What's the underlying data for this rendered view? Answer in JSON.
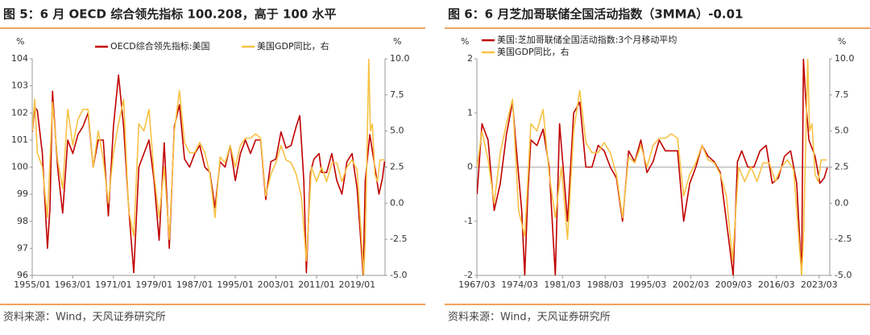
{
  "chart_data": [
    {
      "type": "line",
      "title": "图 5：6 月 OECD 综合领先指标 100.208，高于 100 水平",
      "source": "资料来源：Wind，天风证券研究所",
      "y_unit": "%",
      "y2_unit": "%",
      "legend": "top",
      "xlim": [
        1955,
        2024.5
      ],
      "xticks": [
        {
          "value": 1955,
          "label": "1955/01"
        },
        {
          "value": 1963,
          "label": "1963/01"
        },
        {
          "value": 1971,
          "label": "1971/01"
        },
        {
          "value": 1979,
          "label": "1979/01"
        },
        {
          "value": 1987,
          "label": "1987/01"
        },
        {
          "value": 1995,
          "label": "1995/01"
        },
        {
          "value": 2003,
          "label": "2003/01"
        },
        {
          "value": 2011,
          "label": "2011/01"
        },
        {
          "value": 2019,
          "label": "2019/01"
        }
      ],
      "ylim": [
        96,
        104
      ],
      "yticks": [
        96,
        97,
        98,
        99,
        100,
        101,
        102,
        103,
        104
      ],
      "y2lim": [
        -5,
        10
      ],
      "y2ticks": [
        {
          "value": -5,
          "label": "-5.0"
        },
        -2.5,
        {
          "value": 0,
          "label": "0.0"
        },
        2.5,
        {
          "value": 5,
          "label": "5.0"
        },
        7.5,
        {
          "value": 10,
          "label": "10.0"
        }
      ],
      "series": [
        {
          "name": "OECD综合领先指标:美国",
          "color": "#c00000",
          "axis": "y",
          "x": [
            1955,
            1955.5,
            1956,
            1957,
            1958,
            1958.5,
            1959,
            1960,
            1961,
            1962,
            1963,
            1964,
            1965,
            1966,
            1967,
            1968,
            1969,
            1970,
            1971,
            1972,
            1973,
            1974,
            1975,
            1976,
            1977,
            1978,
            1979,
            1980,
            1981,
            1982,
            1983,
            1984,
            1985,
            1986,
            1987,
            1988,
            1989,
            1990,
            1991,
            1992,
            1993,
            1994,
            1995,
            1996,
            1997,
            1998,
            1999,
            2000,
            2001,
            2002,
            2003,
            2004,
            2005,
            2006,
            2007,
            2007.7,
            2008.5,
            2009,
            2009.8,
            2010.5,
            2011.5,
            2012,
            2013,
            2014,
            2015,
            2016,
            2017,
            2018,
            2019,
            2020.2,
            2020.6,
            2021.5,
            2022.5,
            2023.3,
            2024,
            2024.4
          ],
          "values": [
            101.3,
            102.2,
            102.1,
            100.5,
            97.0,
            98.5,
            102.8,
            100.0,
            98.3,
            101.0,
            100.5,
            101.2,
            101.5,
            102.0,
            100.0,
            101.0,
            101.0,
            98.2,
            101.5,
            103.4,
            101.5,
            98.5,
            96.1,
            100.0,
            100.5,
            101.0,
            99.5,
            97.3,
            100.9,
            97.0,
            101.5,
            102.3,
            100.3,
            100.0,
            100.5,
            100.8,
            100.0,
            99.8,
            98.5,
            100.2,
            100.0,
            100.8,
            99.5,
            100.5,
            101.0,
            100.5,
            101.0,
            101.0,
            98.8,
            100.2,
            100.3,
            101.3,
            100.7,
            100.8,
            101.5,
            101.9,
            99.5,
            96.1,
            99.8,
            100.3,
            100.5,
            99.8,
            99.8,
            100.5,
            99.5,
            99.0,
            100.2,
            100.5,
            99.2,
            96.0,
            99.5,
            101.2,
            100.0,
            99.0,
            99.6,
            100.208
          ]
        },
        {
          "name": "美国GDP同比，右",
          "color": "#f7c244",
          "axis": "y2",
          "x": [
            1955,
            1955.5,
            1956,
            1957,
            1958,
            1959,
            1960,
            1961,
            1962,
            1963,
            1964,
            1965,
            1966,
            1967,
            1968,
            1969,
            1970,
            1971,
            1972,
            1973,
            1974,
            1975,
            1976,
            1977,
            1978,
            1979,
            1980,
            1981,
            1982,
            1983,
            1984,
            1985,
            1986,
            1987,
            1988,
            1989,
            1990,
            1991,
            1992,
            1993,
            1994,
            1995,
            1996,
            1997,
            1998,
            1999,
            2000,
            2001,
            2002,
            2003,
            2004,
            2005,
            2006,
            2007,
            2008,
            2009,
            2010,
            2011,
            2012,
            2013,
            2014,
            2015,
            2016,
            2017,
            2018,
            2019,
            2020.3,
            2020.6,
            2021.3,
            2021.6,
            2022,
            2022.5,
            2023,
            2023.5,
            2024.4
          ],
          "values": [
            5.0,
            7.2,
            3.5,
            2.5,
            -1.0,
            7.0,
            3.0,
            1.0,
            6.5,
            4.0,
            5.8,
            6.5,
            6.5,
            2.5,
            5.0,
            3.0,
            0.0,
            3.5,
            5.5,
            7.2,
            -0.5,
            -2.3,
            5.5,
            5.0,
            6.5,
            2.0,
            -1.0,
            2.5,
            -2.5,
            5.0,
            7.8,
            4.2,
            3.5,
            3.5,
            4.2,
            3.5,
            2.0,
            -1.0,
            3.2,
            2.8,
            4.0,
            2.5,
            4.0,
            4.5,
            4.5,
            4.8,
            4.5,
            0.5,
            2.0,
            2.8,
            4.0,
            3.0,
            2.8,
            2.0,
            0.5,
            -4.0,
            2.5,
            1.5,
            2.5,
            1.5,
            2.8,
            2.8,
            1.5,
            2.5,
            3.0,
            2.3,
            -5.0,
            -2.5,
            10.0,
            5.0,
            5.5,
            2.0,
            1.5,
            3.0,
            3.0
          ]
        }
      ]
    },
    {
      "type": "line",
      "title": "图 6：6 月芝加哥联储全国活动指数（3MMA）-0.01",
      "source": "资料来源：Wind，天风证券研究所",
      "y_unit": "%",
      "y2_unit": "%",
      "legend": "upper left",
      "zero_line": true,
      "xlim": [
        1967.17,
        2024.9
      ],
      "xticks": [
        {
          "value": 1967.17,
          "label": "1967/03"
        },
        {
          "value": 1974.17,
          "label": "1974/03"
        },
        {
          "value": 1981.17,
          "label": "1981/03"
        },
        {
          "value": 1988.17,
          "label": "1988/03"
        },
        {
          "value": 1995.17,
          "label": "1995/03"
        },
        {
          "value": 2002.17,
          "label": "2002/03"
        },
        {
          "value": 2009.17,
          "label": "2009/03"
        },
        {
          "value": 2016.17,
          "label": "2016/03"
        },
        {
          "value": 2023.17,
          "label": "2023/03"
        }
      ],
      "ylim": [
        -2,
        2
      ],
      "yticks": [
        -2,
        -1,
        0,
        1,
        2
      ],
      "y2lim": [
        -5,
        10
      ],
      "y2ticks": [
        {
          "value": -5,
          "label": "-5.0"
        },
        -2.5,
        {
          "value": 0,
          "label": "0.0"
        },
        2.5,
        {
          "value": 5,
          "label": "5.0"
        },
        7.5,
        {
          "value": 10,
          "label": "10.0"
        }
      ],
      "series": [
        {
          "name": "美国:芝加哥联储全国活动指数:3个月移动平均",
          "color": "#c00000",
          "axis": "y",
          "x": [
            1967.2,
            1968,
            1969,
            1970,
            1971,
            1972,
            1973,
            1973.5,
            1974.5,
            1975,
            1975.5,
            1976,
            1977,
            1978,
            1979,
            1980,
            1980.7,
            1981.5,
            1982,
            1983,
            1984,
            1985,
            1986,
            1987,
            1988,
            1989,
            1990,
            1991,
            1992,
            1993,
            1994,
            1995,
            1996,
            1997,
            1998,
            1999,
            2000,
            2001,
            2002,
            2003,
            2004,
            2005,
            2006,
            2007,
            2008,
            2009.1,
            2009.8,
            2010.5,
            2011.5,
            2012.5,
            2013.5,
            2014.5,
            2015.5,
            2016.5,
            2017.5,
            2018.5,
            2019.5,
            2020.3,
            2020.6,
            2021,
            2021.5,
            2022.5,
            2023.3,
            2024,
            2024.5
          ],
          "values": [
            -0.5,
            0.8,
            0.5,
            -0.8,
            -0.3,
            0.6,
            1.2,
            0.5,
            -0.8,
            -2.0,
            -0.5,
            0.5,
            0.4,
            0.7,
            0.0,
            -2.0,
            0.8,
            -0.3,
            -1.0,
            1.0,
            1.2,
            0.0,
            0.0,
            0.4,
            0.3,
            0.0,
            -0.2,
            -1.0,
            0.3,
            0.1,
            0.5,
            -0.1,
            0.1,
            0.5,
            0.3,
            0.3,
            0.3,
            -1.0,
            -0.3,
            0.0,
            0.4,
            0.2,
            0.1,
            -0.1,
            -1.0,
            -2.0,
            0.1,
            0.3,
            0.0,
            0.0,
            0.3,
            0.4,
            -0.3,
            -0.2,
            0.2,
            0.3,
            -0.3,
            -2.0,
            2.0,
            1.2,
            0.5,
            0.2,
            -0.3,
            -0.2,
            -0.01
          ]
        },
        {
          "name": "美国GDP同比，右",
          "color": "#f7c244",
          "axis": "y2",
          "x": [
            1967.2,
            1968,
            1969,
            1970,
            1971,
            1972,
            1973,
            1974,
            1975,
            1976,
            1977,
            1978,
            1979,
            1980,
            1981,
            1982,
            1983,
            1984,
            1985,
            1986,
            1987,
            1988,
            1989,
            1990,
            1991,
            1992,
            1993,
            1994,
            1995,
            1996,
            1997,
            1998,
            1999,
            2000,
            2001,
            2002,
            2003,
            2004,
            2005,
            2006,
            2007,
            2008,
            2009,
            2010,
            2011,
            2012,
            2013,
            2014,
            2015,
            2016,
            2017,
            2018,
            2019,
            2020.3,
            2020.6,
            2021.3,
            2021.6,
            2022,
            2022.5,
            2023,
            2023.5,
            2024.4
          ],
          "values": [
            2.5,
            5.0,
            3.0,
            0.0,
            3.5,
            5.5,
            7.2,
            -0.5,
            -2.3,
            5.5,
            5.0,
            6.5,
            2.0,
            -1.0,
            2.5,
            -2.5,
            5.0,
            7.8,
            4.2,
            3.5,
            3.5,
            4.2,
            3.5,
            2.0,
            -1.0,
            3.2,
            2.8,
            4.0,
            2.5,
            4.0,
            4.5,
            4.5,
            4.8,
            4.5,
            0.5,
            2.0,
            2.8,
            4.0,
            3.0,
            2.8,
            2.0,
            0.5,
            -4.0,
            2.5,
            1.5,
            2.5,
            1.5,
            2.8,
            2.8,
            1.5,
            2.5,
            3.0,
            2.3,
            -5.0,
            -2.5,
            10.0,
            5.0,
            5.5,
            2.0,
            1.5,
            3.0,
            3.0
          ]
        }
      ]
    }
  ]
}
